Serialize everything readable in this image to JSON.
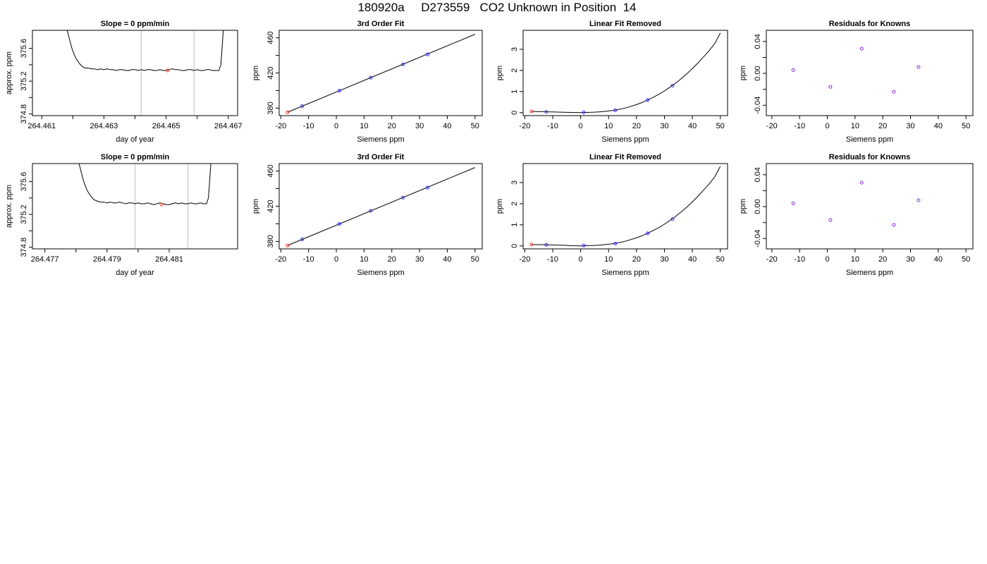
{
  "page": {
    "title": "180920a     D273559   CO2 Unknown in Position  14"
  },
  "chart_data": [
    {
      "id": "trace-1",
      "type": "line",
      "title": "Slope =  0  ppm/min",
      "xlabel": "day of year",
      "ylabel": "approx. ppm",
      "xlim": [
        264.4607,
        264.4673
      ],
      "ylim": [
        374.78,
        375.82
      ],
      "xticks": [
        264.461,
        264.462,
        264.463,
        264.464,
        264.465,
        264.466,
        264.467
      ],
      "xtick_labels": [
        "264.461",
        "",
        "264.463",
        "",
        "264.465",
        "",
        "264.467"
      ],
      "yticks": [
        374.8,
        375.0,
        375.2,
        375.4,
        375.6
      ],
      "ytick_labels": [
        "374.8",
        "",
        "375.2",
        "",
        "375.6"
      ],
      "vlines": [
        264.4642,
        264.4659
      ],
      "vline_color": "#bfbfbf",
      "line_color": "#000000",
      "series": [
        {
          "x": [
            264.46182,
            264.46186,
            264.4619,
            264.46194,
            264.46198,
            264.46202,
            264.46206,
            264.4621,
            264.46215,
            264.4622,
            264.46225,
            264.4623,
            264.46235,
            264.4624,
            264.4625,
            264.4626,
            264.4627,
            264.4628,
            264.4629,
            264.463,
            264.4631,
            264.4632,
            264.4633,
            264.4634,
            264.4635,
            264.4636,
            264.4637,
            264.4638,
            264.4639,
            264.464,
            264.4641,
            264.4642,
            264.4643,
            264.4644,
            264.4645,
            264.4646,
            264.4647,
            264.4648,
            264.4649,
            264.465,
            264.4651,
            264.4652,
            264.4653,
            264.4654,
            264.4655,
            264.4656,
            264.4657,
            264.4658,
            264.4659,
            264.466,
            264.4661,
            264.4662,
            264.4663,
            264.4664,
            264.4665,
            264.4666,
            264.4667,
            264.46676,
            264.4668,
            264.46684
          ],
          "y": [
            375.82,
            375.76,
            375.7,
            375.64,
            375.59,
            375.55,
            375.51,
            375.48,
            375.45,
            375.42,
            375.4,
            375.38,
            375.37,
            375.36,
            375.36,
            375.35,
            375.35,
            375.34,
            375.35,
            375.34,
            375.35,
            375.34,
            375.34,
            375.33,
            375.34,
            375.34,
            375.33,
            375.33,
            375.34,
            375.34,
            375.33,
            375.34,
            375.33,
            375.34,
            375.34,
            375.33,
            375.33,
            375.34,
            375.33,
            375.33,
            375.34,
            375.35,
            375.34,
            375.34,
            375.33,
            375.33,
            375.34,
            375.34,
            375.33,
            375.34,
            375.33,
            375.33,
            375.34,
            375.34,
            375.33,
            375.33,
            375.33,
            375.4,
            375.6,
            375.82
          ]
        }
      ],
      "marker": {
        "x": 264.46505,
        "y": 375.33,
        "color": "#e8392b"
      }
    },
    {
      "id": "fit-1",
      "type": "scatter",
      "title": "3rd Order Fit",
      "xlabel": "Siemens ppm",
      "ylabel": "ppm",
      "xlim": [
        -20.6,
        52.6
      ],
      "ylim": [
        371.5,
        468.5
      ],
      "xticks": [
        -20,
        -10,
        0,
        10,
        20,
        30,
        40,
        50
      ],
      "xtick_labels": [
        "-20",
        "-10",
        "0",
        "10",
        "20",
        "30",
        "40",
        "50"
      ],
      "yticks": [
        380,
        400,
        420,
        440,
        460
      ],
      "ytick_labels": [
        "380",
        "",
        "420",
        "",
        "460"
      ],
      "line": {
        "x": [
          -17.6,
          50
        ],
        "y": [
          375.3,
          464.0
        ],
        "color": "#000000"
      },
      "points": [
        {
          "x": -12.3,
          "y": 382.3,
          "color": "#2b2bff"
        },
        {
          "x": 1.1,
          "y": 399.9,
          "color": "#2b2bff"
        },
        {
          "x": 12.4,
          "y": 414.7,
          "color": "#2b2bff"
        },
        {
          "x": 24.0,
          "y": 429.7,
          "color": "#2b2bff"
        },
        {
          "x": 32.9,
          "y": 441.1,
          "color": "#2b2bff"
        },
        {
          "x": -17.6,
          "y": 375.3,
          "color": "#e8392b"
        }
      ]
    },
    {
      "id": "linear-1",
      "type": "scatter",
      "title": "Linear Fit Removed",
      "xlabel": "Siemens ppm",
      "ylabel": "ppm",
      "xlim": [
        -20.6,
        52.6
      ],
      "ylim": [
        -0.14,
        3.9
      ],
      "xticks": [
        -20,
        -10,
        0,
        10,
        20,
        30,
        40,
        50
      ],
      "xtick_labels": [
        "-20",
        "-10",
        "0",
        "10",
        "20",
        "30",
        "40",
        "50"
      ],
      "yticks": [
        0,
        1,
        2,
        3
      ],
      "ytick_labels": [
        "0",
        "1",
        "2",
        "3"
      ],
      "curve": {
        "x": [
          -17.6,
          -15,
          -12,
          -9,
          -6,
          -3,
          0,
          2,
          4,
          6,
          8,
          10,
          12,
          14,
          16,
          18,
          20,
          22,
          24,
          26,
          28,
          30,
          32,
          34,
          36,
          38,
          40,
          42,
          44,
          46,
          48,
          50
        ],
        "y": [
          0.05,
          0.05,
          0.04,
          0.03,
          0.02,
          0.01,
          0.0,
          0.01,
          0.02,
          0.03,
          0.05,
          0.08,
          0.11,
          0.16,
          0.22,
          0.3,
          0.38,
          0.48,
          0.6,
          0.73,
          0.87,
          1.03,
          1.21,
          1.4,
          1.61,
          1.84,
          2.09,
          2.35,
          2.64,
          2.94,
          3.27,
          3.77
        ],
        "color": "#000000"
      },
      "points": [
        {
          "x": -12.3,
          "y": 0.04,
          "color": "#2b2bff"
        },
        {
          "x": 1.1,
          "y": 0.02,
          "color": "#2b2bff"
        },
        {
          "x": 12.4,
          "y": 0.11,
          "color": "#2b2bff"
        },
        {
          "x": 24.0,
          "y": 0.6,
          "color": "#2b2bff"
        },
        {
          "x": 32.9,
          "y": 1.28,
          "color": "#2b2bff"
        },
        {
          "x": -17.6,
          "y": 0.06,
          "color": "#e8392b"
        }
      ]
    },
    {
      "id": "resid-1",
      "type": "scatter",
      "title": "Residuals for Knowns",
      "xlabel": "Siemens ppm",
      "ylabel": "ppm",
      "xlim": [
        -22.0,
        52.5
      ],
      "ylim": [
        -0.053,
        0.054
      ],
      "xticks": [
        -20,
        -10,
        0,
        10,
        20,
        30,
        40,
        50
      ],
      "xtick_labels": [
        "-20",
        "-10",
        "0",
        "10",
        "20",
        "30",
        "40",
        "50"
      ],
      "yticks": [
        -0.04,
        -0.02,
        0.0,
        0.02,
        0.04
      ],
      "ytick_labels": [
        "-0.04",
        "",
        "0.00",
        "",
        "0.04"
      ],
      "points": [
        {
          "x": -12.3,
          "y": 0.004,
          "color": "#8a2be2"
        },
        {
          "x": 1.1,
          "y": -0.017,
          "color": "#8a2be2"
        },
        {
          "x": 12.4,
          "y": 0.031,
          "color": "#8a2be2"
        },
        {
          "x": 24.0,
          "y": -0.023,
          "color": "#8a2be2"
        },
        {
          "x": 32.9,
          "y": 0.008,
          "color": "#8a2be2"
        }
      ]
    },
    {
      "id": "trace-2",
      "type": "line",
      "title": "Slope =  0  ppm/min",
      "xlabel": "day of year",
      "ylabel": "approx. ppm",
      "xlim": [
        264.4766,
        264.4832
      ],
      "ylim": [
        374.78,
        375.82
      ],
      "xticks": [
        264.477,
        264.478,
        264.479,
        264.48,
        264.481
      ],
      "xtick_labels": [
        "264.477",
        "",
        "264.479",
        "",
        "264.481"
      ],
      "yticks": [
        374.8,
        375.0,
        375.2,
        375.4,
        375.6
      ],
      "ytick_labels": [
        "374.8",
        "",
        "375.2",
        "",
        "375.6"
      ],
      "vlines": [
        264.4799,
        264.4816
      ],
      "vline_color": "#bfbfbf",
      "line_color": "#000000",
      "series": [
        {
          "x": [
            264.4781,
            264.47814,
            264.47818,
            264.47822,
            264.47826,
            264.4783,
            264.47834,
            264.47838,
            264.47843,
            264.47848,
            264.47853,
            264.47858,
            264.47864,
            264.4787,
            264.4788,
            264.4789,
            264.479,
            264.4791,
            264.4792,
            264.4793,
            264.4794,
            264.4795,
            264.4796,
            264.4797,
            264.4798,
            264.4799,
            264.48,
            264.4801,
            264.4802,
            264.4803,
            264.4804,
            264.4805,
            264.4806,
            264.4807,
            264.4808,
            264.4809,
            264.481,
            264.4811,
            264.4812,
            264.4813,
            264.4814,
            264.4815,
            264.4816,
            264.4817,
            264.4818,
            264.4819,
            264.482,
            264.4821,
            264.4822,
            264.48226,
            264.4823,
            264.48234
          ],
          "y": [
            375.82,
            375.76,
            375.7,
            375.64,
            375.59,
            375.55,
            375.51,
            375.48,
            375.45,
            375.42,
            375.4,
            375.38,
            375.37,
            375.36,
            375.35,
            375.35,
            375.34,
            375.35,
            375.34,
            375.34,
            375.35,
            375.34,
            375.33,
            375.34,
            375.34,
            375.33,
            375.34,
            375.33,
            375.33,
            375.34,
            375.33,
            375.32,
            375.33,
            375.34,
            375.33,
            375.32,
            375.32,
            375.33,
            375.34,
            375.33,
            375.34,
            375.33,
            375.33,
            375.34,
            375.33,
            375.33,
            375.34,
            375.33,
            375.33,
            375.4,
            375.6,
            375.82
          ]
        }
      ],
      "marker": {
        "x": 264.48075,
        "y": 375.32,
        "color": "#e8392b"
      }
    },
    {
      "id": "fit-2",
      "type": "scatter",
      "title": "3rd Order Fit",
      "xlabel": "Siemens ppm",
      "ylabel": "ppm",
      "xlim": [
        -20.6,
        52.6
      ],
      "ylim": [
        371.5,
        468.5
      ],
      "xticks": [
        -20,
        -10,
        0,
        10,
        20,
        30,
        40,
        50
      ],
      "xtick_labels": [
        "-20",
        "-10",
        "0",
        "10",
        "20",
        "30",
        "40",
        "50"
      ],
      "yticks": [
        380,
        400,
        420,
        440,
        460
      ],
      "ytick_labels": [
        "380",
        "",
        "420",
        "",
        "460"
      ],
      "line": {
        "x": [
          -17.6,
          50
        ],
        "y": [
          375.3,
          464.0
        ],
        "color": "#000000"
      },
      "points": [
        {
          "x": -12.3,
          "y": 382.3,
          "color": "#2b2bff"
        },
        {
          "x": 1.1,
          "y": 399.9,
          "color": "#2b2bff"
        },
        {
          "x": 12.4,
          "y": 414.7,
          "color": "#2b2bff"
        },
        {
          "x": 24.0,
          "y": 429.7,
          "color": "#2b2bff"
        },
        {
          "x": 32.9,
          "y": 441.1,
          "color": "#2b2bff"
        },
        {
          "x": -17.6,
          "y": 375.3,
          "color": "#e8392b"
        }
      ]
    },
    {
      "id": "linear-2",
      "type": "scatter",
      "title": "Linear Fit Removed",
      "xlabel": "Siemens ppm",
      "ylabel": "ppm",
      "xlim": [
        -20.6,
        52.6
      ],
      "ylim": [
        -0.14,
        3.9
      ],
      "xticks": [
        -20,
        -10,
        0,
        10,
        20,
        30,
        40,
        50
      ],
      "xtick_labels": [
        "-20",
        "-10",
        "0",
        "10",
        "20",
        "30",
        "40",
        "50"
      ],
      "yticks": [
        0,
        1,
        2,
        3
      ],
      "ytick_labels": [
        "0",
        "1",
        "2",
        "3"
      ],
      "curve": {
        "x": [
          -17.6,
          -15,
          -12,
          -9,
          -6,
          -3,
          0,
          2,
          4,
          6,
          8,
          10,
          12,
          14,
          16,
          18,
          20,
          22,
          24,
          26,
          28,
          30,
          32,
          34,
          36,
          38,
          40,
          42,
          44,
          46,
          48,
          50
        ],
        "y": [
          0.06,
          0.06,
          0.05,
          0.04,
          0.03,
          0.01,
          0.0,
          0.01,
          0.02,
          0.03,
          0.05,
          0.08,
          0.11,
          0.16,
          0.22,
          0.3,
          0.38,
          0.48,
          0.6,
          0.73,
          0.87,
          1.03,
          1.21,
          1.4,
          1.61,
          1.84,
          2.09,
          2.35,
          2.64,
          2.94,
          3.27,
          3.77
        ],
        "color": "#000000"
      },
      "points": [
        {
          "x": -12.3,
          "y": 0.05,
          "color": "#2b2bff"
        },
        {
          "x": 1.1,
          "y": 0.02,
          "color": "#2b2bff"
        },
        {
          "x": 12.4,
          "y": 0.11,
          "color": "#2b2bff"
        },
        {
          "x": 24.0,
          "y": 0.6,
          "color": "#2b2bff"
        },
        {
          "x": 32.9,
          "y": 1.27,
          "color": "#2b2bff"
        },
        {
          "x": -17.6,
          "y": 0.07,
          "color": "#e8392b"
        }
      ]
    },
    {
      "id": "resid-2",
      "type": "scatter",
      "title": "Residuals for Knowns",
      "xlabel": "Siemens ppm",
      "ylabel": "ppm",
      "xlim": [
        -22.0,
        52.5
      ],
      "ylim": [
        -0.053,
        0.054
      ],
      "xticks": [
        -20,
        -10,
        0,
        10,
        20,
        30,
        40,
        50
      ],
      "xtick_labels": [
        "-20",
        "-10",
        "0",
        "10",
        "20",
        "30",
        "40",
        "50"
      ],
      "yticks": [
        -0.04,
        -0.02,
        0.0,
        0.02,
        0.04
      ],
      "ytick_labels": [
        "-0.04",
        "",
        "0.00",
        "",
        "0.04"
      ],
      "points": [
        {
          "x": -12.3,
          "y": 0.004,
          "color": "#8a2be2"
        },
        {
          "x": 1.1,
          "y": -0.017,
          "color": "#8a2be2"
        },
        {
          "x": 12.4,
          "y": 0.03,
          "color": "#8a2be2"
        },
        {
          "x": 24.0,
          "y": -0.023,
          "color": "#8a2be2"
        },
        {
          "x": 32.9,
          "y": 0.008,
          "color": "#8a2be2"
        }
      ]
    }
  ]
}
